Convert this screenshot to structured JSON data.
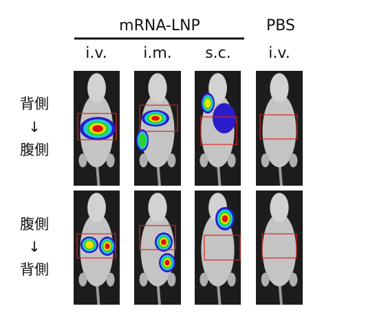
{
  "header": {
    "group_labels": [
      "mRNA-LNP",
      "PBS"
    ]
  },
  "columns": [
    "i.v.",
    "i.m.",
    "s.c.",
    "i.v."
  ],
  "rows": [
    {
      "label_lines": [
        "背側",
        "↓",
        "腹側"
      ]
    },
    {
      "label_lines": [
        "腹側",
        "↓",
        "背側"
      ]
    }
  ]
}
